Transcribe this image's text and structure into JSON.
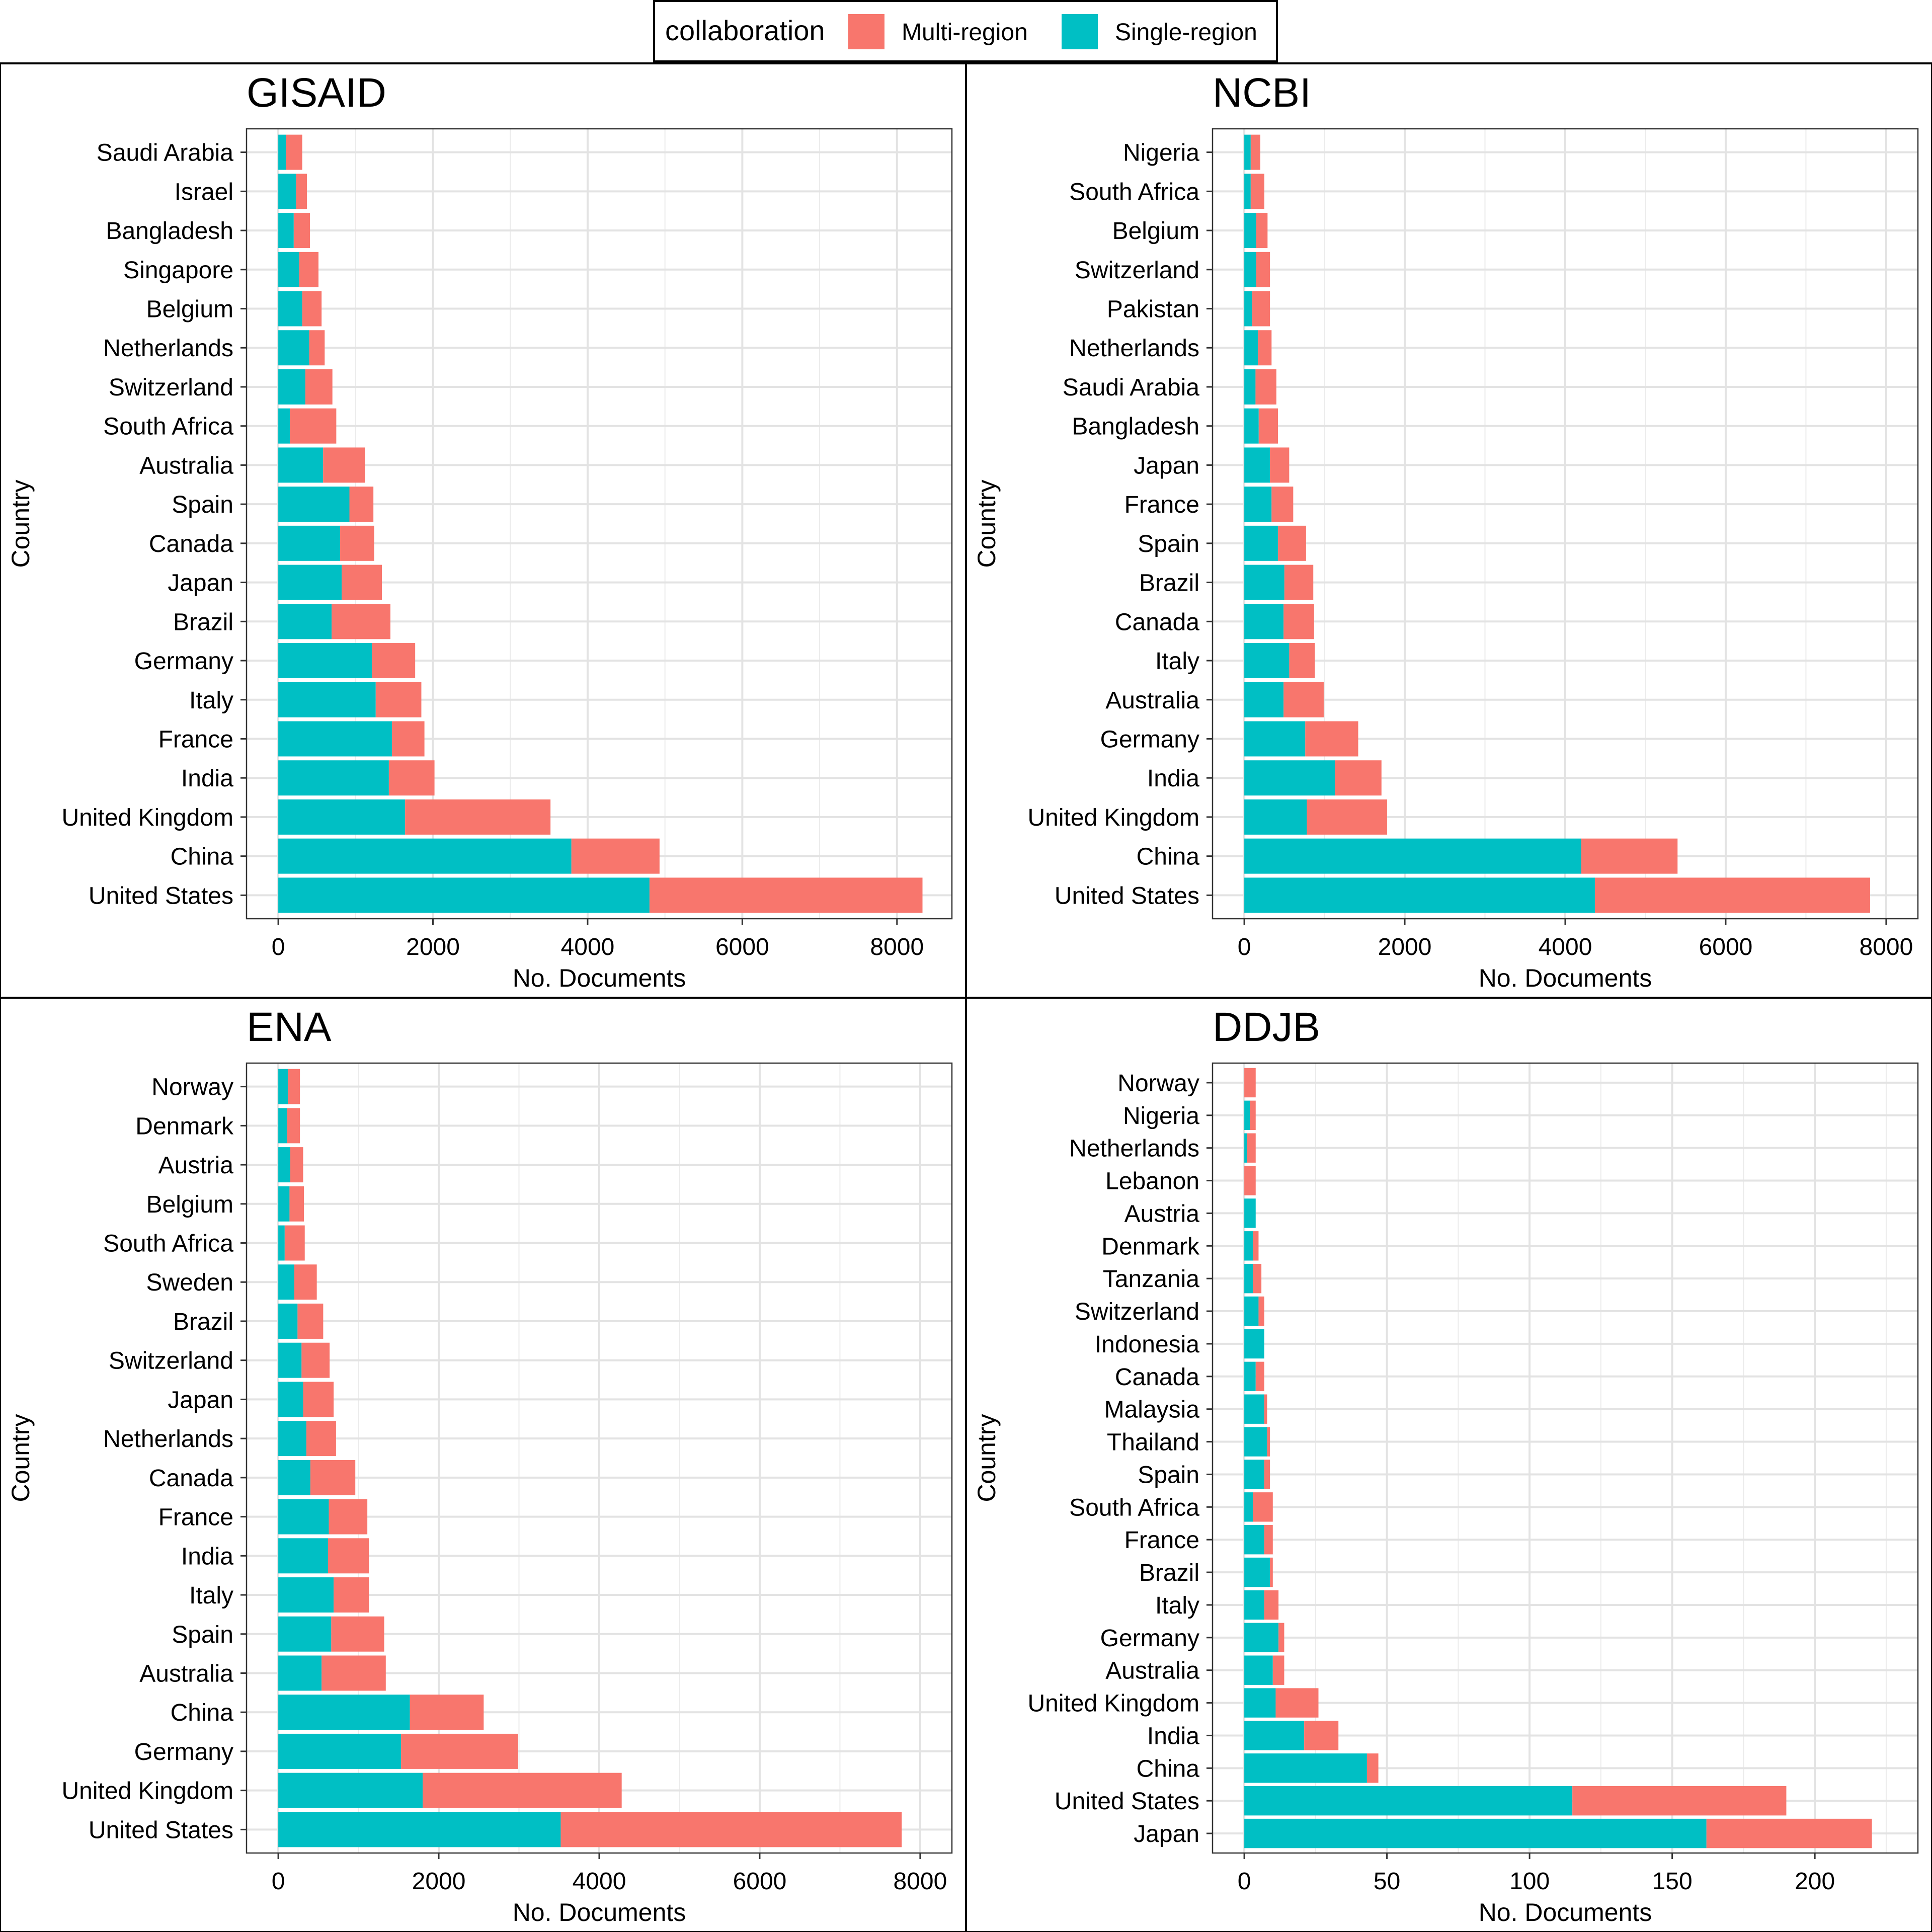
{
  "legend": {
    "title": "collaboration",
    "items": [
      {
        "name": "Multi-region",
        "color": "#F8766D"
      },
      {
        "name": "Single-region",
        "color": "#00BFC4"
      }
    ]
  },
  "chart_data": [
    {
      "type": "bar",
      "orientation": "horizontal",
      "stacked": true,
      "title": "GISAID",
      "xlabel": "No. Documents",
      "ylabel": "Country",
      "xlim": [
        0,
        8300
      ],
      "xticks": [
        0,
        2000,
        4000,
        6000,
        8000
      ],
      "grid": true,
      "categories": [
        "Saudi Arabia",
        "Israel",
        "Bangladesh",
        "Singapore",
        "Belgium",
        "Netherlands",
        "Switzerland",
        "South Africa",
        "Australia",
        "Spain",
        "Canada",
        "Japan",
        "Brazil",
        "Germany",
        "Italy",
        "France",
        "India",
        "United Kingdom",
        "China",
        "United States"
      ],
      "series": [
        {
          "name": "Single-region",
          "values": [
            100,
            230,
            200,
            270,
            310,
            400,
            350,
            150,
            580,
            920,
            800,
            820,
            690,
            1210,
            1260,
            1470,
            1430,
            1640,
            3790,
            4800
          ]
        },
        {
          "name": "Multi-region",
          "values": [
            210,
            140,
            210,
            250,
            250,
            200,
            350,
            600,
            540,
            310,
            440,
            520,
            760,
            560,
            590,
            420,
            590,
            1880,
            1140,
            3530
          ]
        }
      ]
    },
    {
      "type": "bar",
      "orientation": "horizontal",
      "stacked": true,
      "title": "NCBI",
      "xlabel": "No. Documents",
      "ylabel": "Country",
      "xlim": [
        0,
        8000
      ],
      "xticks": [
        0,
        2000,
        4000,
        6000,
        8000
      ],
      "grid": true,
      "categories": [
        "Nigeria",
        "South Africa",
        "Belgium",
        "Switzerland",
        "Pakistan",
        "Netherlands",
        "Saudi Arabia",
        "Bangladesh",
        "Japan",
        "France",
        "Spain",
        "Brazil",
        "Canada",
        "Italy",
        "Australia",
        "Germany",
        "India",
        "United Kingdom",
        "China",
        "United States"
      ],
      "series": [
        {
          "name": "Single-region",
          "values": [
            80,
            80,
            150,
            150,
            100,
            170,
            140,
            180,
            320,
            340,
            420,
            500,
            490,
            560,
            490,
            760,
            1130,
            780,
            4200,
            4370
          ]
        },
        {
          "name": "Multi-region",
          "values": [
            120,
            170,
            140,
            170,
            220,
            170,
            260,
            240,
            240,
            270,
            350,
            360,
            380,
            320,
            500,
            660,
            580,
            1000,
            1200,
            3430
          ]
        }
      ]
    },
    {
      "type": "bar",
      "orientation": "horizontal",
      "stacked": true,
      "title": "ENA",
      "xlabel": "No. Documents",
      "ylabel": "Country",
      "xlim": [
        0,
        8000
      ],
      "xticks": [
        0,
        2000,
        4000,
        6000,
        8000
      ],
      "grid": true,
      "categories": [
        "Norway",
        "Denmark",
        "Austria",
        "Belgium",
        "South Africa",
        "Sweden",
        "Brazil",
        "Switzerland",
        "Japan",
        "Netherlands",
        "Canada",
        "France",
        "India",
        "Italy",
        "Spain",
        "Australia",
        "China",
        "Germany",
        "United Kingdom",
        "United States"
      ],
      "series": [
        {
          "name": "Single-region",
          "values": [
            120,
            110,
            150,
            140,
            80,
            200,
            240,
            290,
            310,
            350,
            400,
            630,
            620,
            690,
            660,
            540,
            1640,
            1530,
            1800,
            3520
          ]
        },
        {
          "name": "Multi-region",
          "values": [
            150,
            160,
            160,
            180,
            250,
            280,
            320,
            350,
            380,
            370,
            560,
            480,
            510,
            440,
            660,
            800,
            920,
            1460,
            2480,
            4250
          ]
        }
      ]
    },
    {
      "type": "bar",
      "orientation": "horizontal",
      "stacked": true,
      "title": "DDJB",
      "xlabel": "No. Documents",
      "ylabel": "Country",
      "xlim": [
        0,
        225
      ],
      "xticks": [
        0,
        50,
        100,
        150,
        200
      ],
      "grid": true,
      "categories": [
        "Norway",
        "Nigeria",
        "Netherlands",
        "Lebanon",
        "Austria",
        "Denmark",
        "Tanzania",
        "Switzerland",
        "Indonesia",
        "Canada",
        "Malaysia",
        "Thailand",
        "Spain",
        "South Africa",
        "France",
        "Brazil",
        "Italy",
        "Germany",
        "Australia",
        "United Kingdom",
        "India",
        "China",
        "United States",
        "Japan"
      ],
      "series": [
        {
          "name": "Single-region",
          "values": [
            0,
            2,
            1,
            0,
            4,
            3,
            3,
            5,
            7,
            4,
            7,
            8,
            7,
            3,
            7,
            9,
            7,
            12,
            10,
            11,
            21,
            43,
            115,
            162
          ]
        },
        {
          "name": "Multi-region",
          "values": [
            4,
            2,
            3,
            4,
            0,
            2,
            3,
            2,
            0,
            3,
            1,
            1,
            2,
            7,
            3,
            1,
            5,
            2,
            4,
            15,
            12,
            4,
            75,
            58
          ]
        }
      ]
    }
  ]
}
